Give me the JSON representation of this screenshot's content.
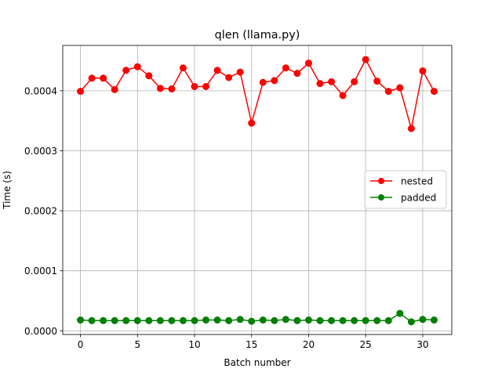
{
  "chart_data": {
    "type": "line",
    "title": "qlen (llama.py)",
    "xlabel": "Batch number",
    "ylabel": "Time (s)",
    "xlim": [
      -1.55,
      32.55
    ],
    "ylim": [
      -6.1e-06,
      0.0004755
    ],
    "x_ticks": [
      0,
      5,
      10,
      15,
      20,
      25,
      30
    ],
    "x_tick_labels": [
      "0",
      "5",
      "10",
      "15",
      "20",
      "25",
      "30"
    ],
    "y_ticks": [
      0.0,
      0.0001,
      0.0002,
      0.0003,
      0.0004
    ],
    "y_tick_labels": [
      "0.0000",
      "0.0001",
      "0.0002",
      "0.0003",
      "0.0004"
    ],
    "grid": true,
    "legend_position": "center-right",
    "x": [
      0,
      1,
      2,
      3,
      4,
      5,
      6,
      7,
      8,
      9,
      10,
      11,
      12,
      13,
      14,
      15,
      16,
      17,
      18,
      19,
      20,
      21,
      22,
      23,
      24,
      25,
      26,
      27,
      28,
      29,
      30,
      31
    ],
    "series": [
      {
        "name": "nested",
        "color": "#ff0000",
        "marker": "circle",
        "values": [
          0.000399,
          0.000421,
          0.000421,
          0.000402,
          0.000434,
          0.00044,
          0.000425,
          0.000404,
          0.000403,
          0.000438,
          0.000407,
          0.000407,
          0.000434,
          0.000422,
          0.000431,
          0.000346,
          0.000414,
          0.000417,
          0.000438,
          0.000429,
          0.000446,
          0.000412,
          0.000415,
          0.000392,
          0.000415,
          0.000452,
          0.000416,
          0.000399,
          0.000405,
          0.000337,
          0.000433,
          0.000399
        ]
      },
      {
        "name": "padded",
        "color": "#008000",
        "marker": "circle",
        "values": [
          1.8e-05,
          1.7e-05,
          1.7e-05,
          1.7e-05,
          1.7e-05,
          1.7e-05,
          1.7e-05,
          1.7e-05,
          1.7e-05,
          1.7e-05,
          1.7e-05,
          1.8e-05,
          1.8e-05,
          1.7e-05,
          1.9e-05,
          1.6e-05,
          1.8e-05,
          1.7e-05,
          1.9e-05,
          1.7e-05,
          1.8e-05,
          1.7e-05,
          1.7e-05,
          1.7e-05,
          1.7e-05,
          1.7e-05,
          1.7e-05,
          1.7e-05,
          2.9e-05,
          1.5e-05,
          1.9e-05,
          1.8e-05
        ]
      }
    ]
  }
}
